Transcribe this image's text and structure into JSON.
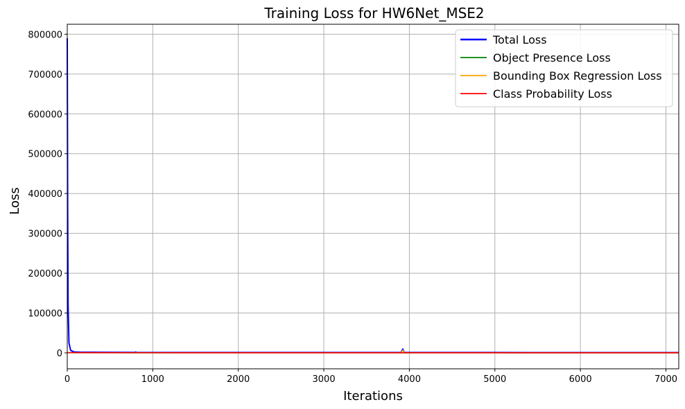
{
  "chart_data": {
    "type": "line",
    "title": "Training Loss for HW6Net_MSE2",
    "xlabel": "Iterations",
    "ylabel": "Loss",
    "xlim": [
      0,
      7150
    ],
    "ylim": [
      -40000,
      825000
    ],
    "xticks": [
      0,
      1000,
      2000,
      3000,
      4000,
      5000,
      6000,
      7000
    ],
    "yticks": [
      0,
      100000,
      200000,
      300000,
      400000,
      500000,
      600000,
      700000,
      800000
    ],
    "grid": true,
    "legend_position": "top-right",
    "series": [
      {
        "name": "Total Loss",
        "color": "#0000ff",
        "x": [
          0,
          2,
          5,
          10,
          20,
          40,
          80,
          150,
          300,
          500,
          800,
          801,
          805,
          1000,
          2000,
          3000,
          3900,
          3925,
          3930,
          3940,
          3960,
          4000,
          5000,
          6000,
          7000,
          7150
        ],
        "y": [
          790000,
          620000,
          360000,
          120000,
          25000,
          6000,
          2500,
          1800,
          1500,
          1300,
          1200,
          2200,
          1100,
          1000,
          950,
          900,
          900,
          9500,
          5000,
          1200,
          900,
          850,
          800,
          780,
          760,
          750
        ]
      },
      {
        "name": "Object Presence Loss",
        "color": "#008000",
        "x": [
          0,
          10,
          50,
          200,
          1000,
          2000,
          3000,
          4000,
          5000,
          6000,
          7000,
          7150
        ],
        "y": [
          600,
          400,
          300,
          250,
          200,
          190,
          180,
          175,
          170,
          165,
          160,
          160
        ]
      },
      {
        "name": "Bounding Box Regression Loss",
        "color": "#ffa500",
        "x": [
          0,
          10,
          50,
          200,
          1000,
          2000,
          3000,
          3900,
          3925,
          3930,
          3940,
          4000,
          5000,
          6000,
          7000,
          7150
        ],
        "y": [
          900,
          700,
          500,
          400,
          350,
          330,
          320,
          320,
          6500,
          3500,
          500,
          320,
          300,
          290,
          280,
          280
        ]
      },
      {
        "name": "Class Probability Loss",
        "color": "#ff0000",
        "x": [
          0,
          10,
          50,
          200,
          1000,
          2000,
          3000,
          4000,
          5000,
          6000,
          7000,
          7150
        ],
        "y": [
          1100,
          800,
          600,
          500,
          450,
          430,
          420,
          410,
          400,
          395,
          390,
          390
        ]
      }
    ]
  }
}
